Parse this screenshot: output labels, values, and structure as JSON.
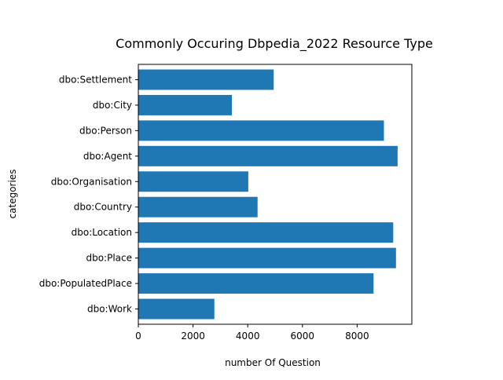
{
  "chart_data": {
    "type": "bar",
    "orientation": "horizontal",
    "title": "Commonly Occuring Dbpedia_2022 Resource Type",
    "xlabel": "number Of Question",
    "ylabel": "categories",
    "categories": [
      "dbo:Settlement",
      "dbo:City",
      "dbo:Person",
      "dbo:Agent",
      "dbo:Organisation",
      "dbo:Country",
      "dbo:Location",
      "dbo:Place",
      "dbo:PopulatedPlace",
      "dbo:Work"
    ],
    "values": [
      4950,
      3420,
      8980,
      9480,
      4020,
      4360,
      9320,
      9420,
      8600,
      2780
    ],
    "xlim": [
      0,
      10000
    ],
    "xticks": [
      0,
      2000,
      4000,
      6000,
      8000
    ],
    "xtick_labels": [
      "0",
      "2000",
      "4000",
      "6000",
      "8000"
    ],
    "grid": false,
    "bar_color": "#1f77b4"
  }
}
